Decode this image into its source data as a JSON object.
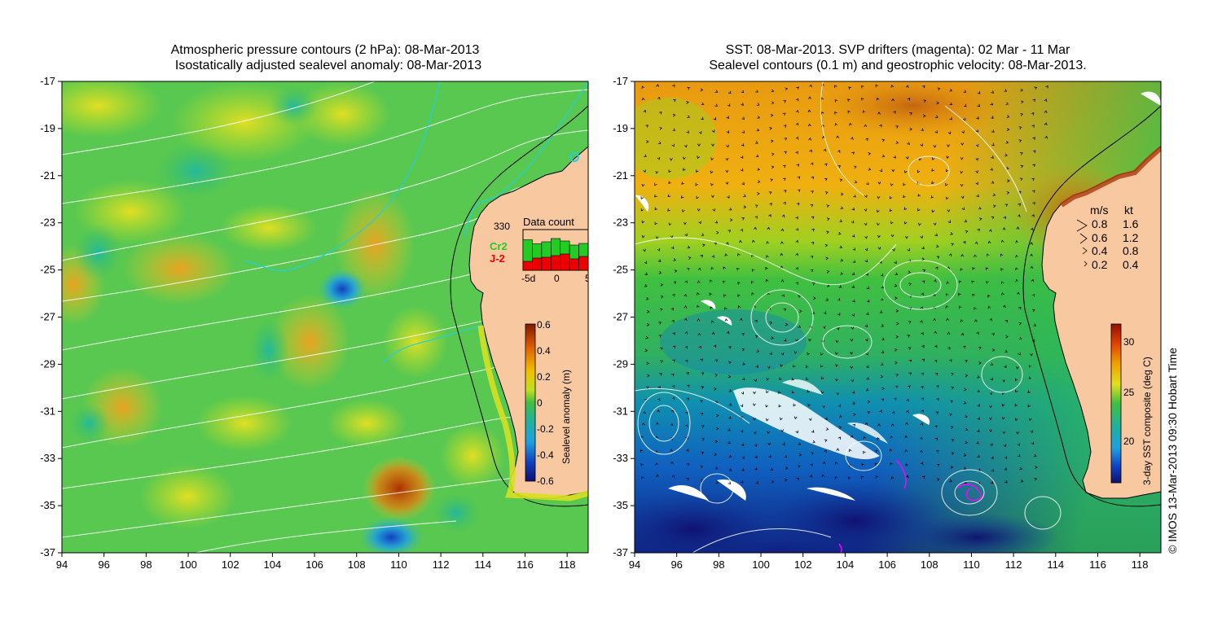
{
  "left_panel": {
    "title_line1": "Atmospheric pressure contours (2 hPa): 08-Mar-2013",
    "title_line2": "Isostatically adjusted sealevel anomaly: 08-Mar-2013",
    "x_ticks": [
      "94",
      "96",
      "98",
      "100",
      "102",
      "104",
      "106",
      "108",
      "110",
      "112",
      "114",
      "116",
      "118"
    ],
    "y_ticks": [
      "-17",
      "-19",
      "-21",
      "-23",
      "-25",
      "-27",
      "-29",
      "-31",
      "-33",
      "-35",
      "-37"
    ],
    "colorbar": {
      "label": "Sealevel anomaly (m)",
      "ticks": [
        "0.6",
        "0.4",
        "0.2",
        "0",
        "-0.2",
        "-0.4",
        "-0.6"
      ]
    },
    "data_count": {
      "title": "Data count",
      "max_label": "330",
      "series": [
        {
          "name": "Cr2",
          "color": "#22cc22"
        },
        {
          "name": "J-2",
          "color": "#ee0000"
        }
      ],
      "x_ticks": [
        "-5d",
        "0",
        "5"
      ],
      "cr2_values": [
        0.75,
        0.65,
        0.7,
        0.78,
        0.72,
        0.62,
        0.66
      ],
      "j2_values": [
        0.22,
        0.3,
        0.32,
        0.36,
        0.4,
        0.28,
        0.34
      ]
    }
  },
  "right_panel": {
    "title_line1": "SST: 08-Mar-2013. SVP drifters (magenta): 02 Mar - 11 Mar",
    "title_line2": "Sealevel contours (0.1 m) and geostrophic velocity: 08-Mar-2013.",
    "x_ticks": [
      "94",
      "96",
      "98",
      "100",
      "102",
      "104",
      "106",
      "108",
      "110",
      "112",
      "114",
      "116",
      "118"
    ],
    "y_ticks": [
      "-17",
      "-19",
      "-21",
      "-23",
      "-25",
      "-27",
      "-29",
      "-31",
      "-33",
      "-35",
      "-37"
    ],
    "colorbar": {
      "label": "3-day SST composite (deg C)",
      "ticks": [
        "30",
        "25",
        "20"
      ]
    },
    "velocity_legend": {
      "header_ms": "m/s",
      "header_kt": "kt",
      "rows": [
        {
          "ms": "0.8",
          "kt": "1.6"
        },
        {
          "ms": "0.6",
          "kt": "1.2"
        },
        {
          "ms": "0.4",
          "kt": "0.8"
        },
        {
          "ms": "0.2",
          "kt": "0.4"
        }
      ]
    }
  },
  "credit": "© IMOS 13-Mar-2013 09:30 Hobart Time",
  "colors": {
    "land": "#f8c8a0",
    "coast": "#000000",
    "sla_high": "#a03000",
    "sla_zero": "#40c040",
    "sla_low": "#101080",
    "sst_warm": "#e08000",
    "sst_mid": "#40c040",
    "sst_cold": "#101080",
    "cloud": "#ffffff",
    "drifter": "#ff00ff"
  }
}
